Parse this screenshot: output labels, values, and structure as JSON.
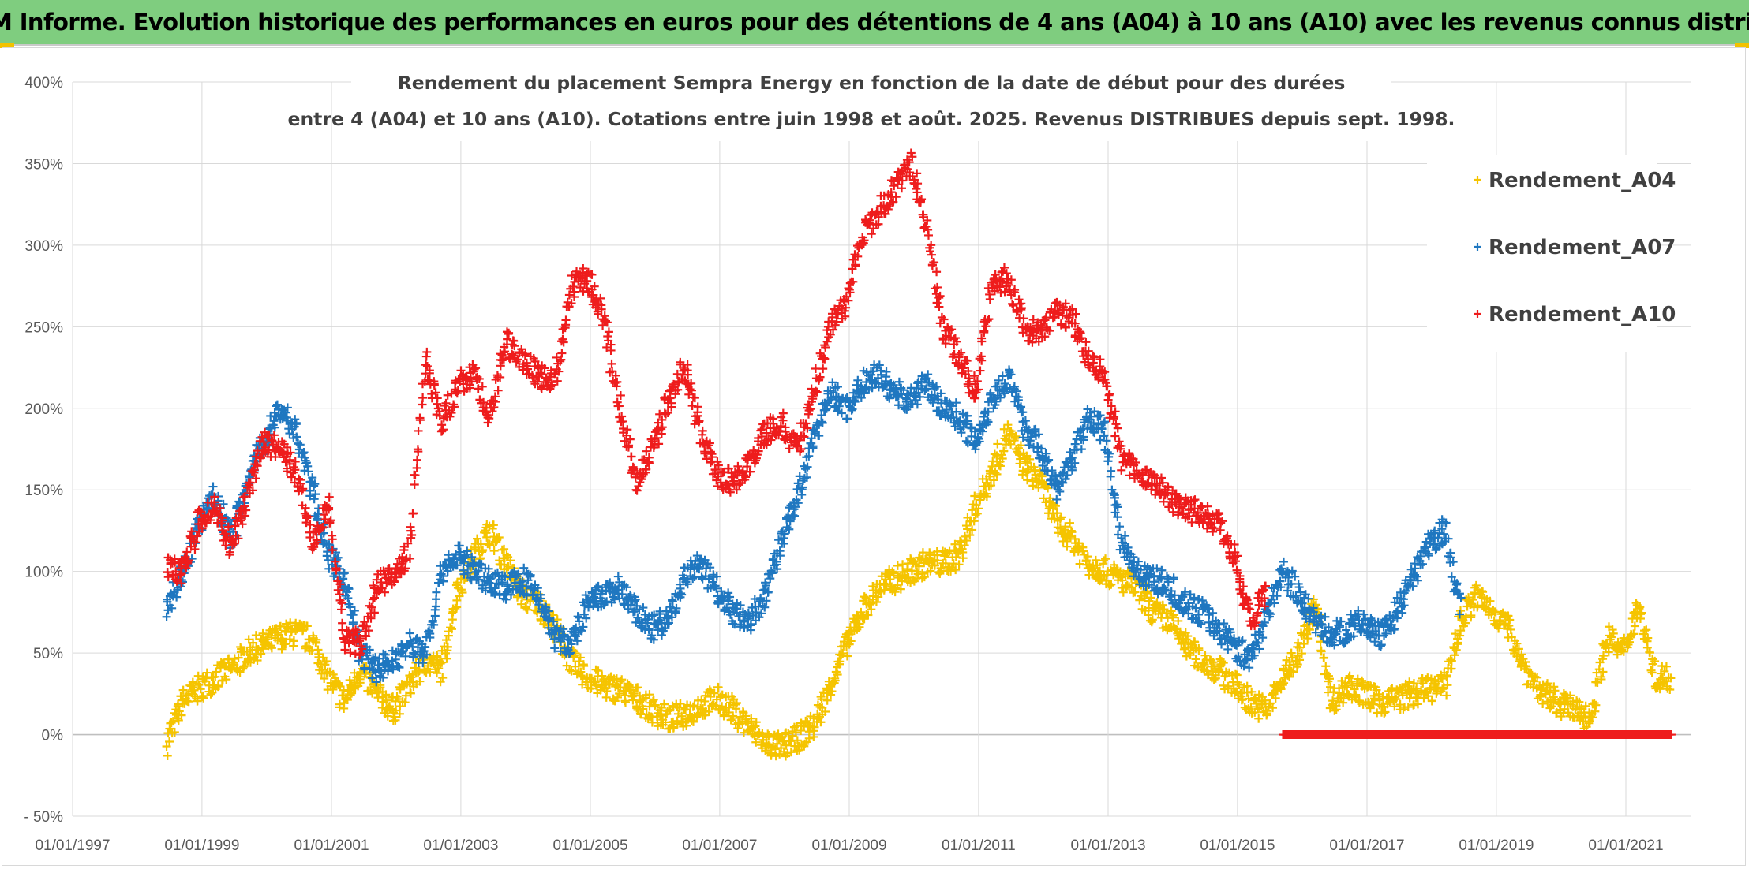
{
  "header": {
    "title": "ADAM Informe. Evolution historique des performances en euros pour des détentions de 4 ans (A04) à 10 ans (A10) avec les revenus connus distribués"
  },
  "colors": {
    "banner": "#7fcd7f",
    "a04": "#f5c400",
    "a07": "#1f77c0",
    "a10": "#ee1c1c",
    "grid": "#d9d9d9"
  },
  "chart_data": {
    "type": "scatter",
    "title_lines": [
      "Rendement du placement Sempra Energy en fonction de la date de début pour des durées",
      "entre 4 (A04) et 10 ans (A10). Cotations entre juin 1998 et août. 2025. Revenus DISTRIBUES depuis sept. 1998."
    ],
    "xlabel": "",
    "ylabel": "",
    "x_ticks": [
      "01/01/1997",
      "01/01/1999",
      "01/01/2001",
      "01/01/2003",
      "01/01/2005",
      "01/01/2007",
      "01/01/2009",
      "01/01/2011",
      "01/01/2013",
      "01/01/2015",
      "01/01/2017",
      "01/01/2019",
      "01/01/2021"
    ],
    "y_ticks": [
      "- 50%",
      "0%",
      "50%",
      "100%",
      "150%",
      "200%",
      "250%",
      "300%",
      "350%",
      "400%"
    ],
    "xlim": [
      "1997-01-01",
      "2021-01-10"
    ],
    "ylim": [
      -0.5,
      4.0
    ],
    "grid": true,
    "legend_position": "top-right",
    "marker": "+",
    "series": [
      {
        "name": "Rendement_A04",
        "color": "#f5c400",
        "x": [
          "1998-06",
          "1998-09",
          "1998-12",
          "1999-03",
          "1999-06",
          "1999-09",
          "1999-12",
          "2000-03",
          "2000-06",
          "2000-09",
          "2000-12",
          "2001-03",
          "2001-06",
          "2001-09",
          "2001-12",
          "2002-03",
          "2002-06",
          "2002-09",
          "2002-12",
          "2003-03",
          "2003-06",
          "2003-09",
          "2003-12",
          "2004-03",
          "2004-06",
          "2004-09",
          "2004-12",
          "2005-03",
          "2005-06",
          "2005-09",
          "2005-12",
          "2006-03",
          "2006-06",
          "2006-09",
          "2006-12",
          "2007-03",
          "2007-06",
          "2007-09",
          "2007-12",
          "2008-03",
          "2008-06",
          "2008-09",
          "2008-12",
          "2009-03",
          "2009-06",
          "2009-09",
          "2009-12",
          "2010-03",
          "2010-06",
          "2010-09",
          "2010-12",
          "2011-03",
          "2011-06",
          "2011-09",
          "2011-12",
          "2012-03",
          "2012-06",
          "2012-09",
          "2012-12",
          "2013-03",
          "2013-06",
          "2013-09",
          "2013-12",
          "2014-03",
          "2014-06",
          "2014-09",
          "2014-12",
          "2015-03",
          "2015-06",
          "2015-09",
          "2015-12",
          "2016-03",
          "2016-06",
          "2016-09",
          "2016-12",
          "2017-03",
          "2017-06",
          "2017-09",
          "2017-12",
          "2018-03",
          "2018-06",
          "2018-09",
          "2018-12",
          "2019-03",
          "2019-06",
          "2019-09",
          "2019-12",
          "2020-03",
          "2020-06",
          "2020-09",
          "2020-12",
          "2021-03",
          "2021-06",
          "2021-09"
        ],
        "values": [
          -0.05,
          0.2,
          0.28,
          0.35,
          0.4,
          0.5,
          0.55,
          0.6,
          0.62,
          0.58,
          0.35,
          0.2,
          0.4,
          0.25,
          0.15,
          0.3,
          0.45,
          0.4,
          0.9,
          1.1,
          1.25,
          1.05,
          0.85,
          0.8,
          0.65,
          0.45,
          0.35,
          0.3,
          0.28,
          0.22,
          0.15,
          0.1,
          0.12,
          0.18,
          0.22,
          0.15,
          0.05,
          -0.05,
          -0.08,
          -0.02,
          0.05,
          0.3,
          0.55,
          0.75,
          0.9,
          0.95,
          1.0,
          1.05,
          1.05,
          1.1,
          1.4,
          1.6,
          1.85,
          1.65,
          1.55,
          1.3,
          1.2,
          1.05,
          1.0,
          0.95,
          0.9,
          0.75,
          0.7,
          0.55,
          0.45,
          0.4,
          0.3,
          0.2,
          0.15,
          0.35,
          0.5,
          0.8,
          0.2,
          0.3,
          0.25,
          0.2,
          0.22,
          0.25,
          0.28,
          0.3,
          0.7,
          0.85,
          0.75,
          0.65,
          0.4,
          0.25,
          0.2,
          0.15,
          0.1,
          0.6,
          0.5,
          0.8,
          0.35,
          0.35
        ]
      },
      {
        "name": "Rendement_A07",
        "color": "#1f77c0",
        "x": [
          "1998-06",
          "1998-09",
          "1998-12",
          "1999-03",
          "1999-06",
          "1999-09",
          "1999-12",
          "2000-03",
          "2000-06",
          "2000-09",
          "2000-12",
          "2001-03",
          "2001-06",
          "2001-09",
          "2001-12",
          "2002-03",
          "2002-06",
          "2002-09",
          "2002-12",
          "2003-03",
          "2003-06",
          "2003-09",
          "2003-12",
          "2004-03",
          "2004-06",
          "2004-09",
          "2004-12",
          "2005-03",
          "2005-06",
          "2005-09",
          "2005-12",
          "2006-03",
          "2006-06",
          "2006-09",
          "2006-12",
          "2007-03",
          "2007-06",
          "2007-09",
          "2007-12",
          "2008-03",
          "2008-06",
          "2008-09",
          "2008-12",
          "2009-03",
          "2009-06",
          "2009-09",
          "2009-12",
          "2010-03",
          "2010-06",
          "2010-09",
          "2010-12",
          "2011-03",
          "2011-06",
          "2011-09",
          "2011-12",
          "2012-03",
          "2012-06",
          "2012-09",
          "2012-12",
          "2013-03",
          "2013-06",
          "2013-09",
          "2013-12",
          "2014-03",
          "2014-06",
          "2014-09",
          "2014-12",
          "2015-03",
          "2015-06",
          "2015-09",
          "2015-12",
          "2016-03",
          "2016-06",
          "2016-09",
          "2016-12",
          "2017-03",
          "2017-06",
          "2017-09",
          "2017-12",
          "2018-03",
          "2018-06"
        ],
        "values": [
          0.8,
          1.0,
          1.3,
          1.45,
          1.2,
          1.55,
          1.8,
          2.0,
          1.85,
          1.5,
          1.1,
          0.95,
          0.5,
          0.4,
          0.45,
          0.55,
          0.5,
          1.0,
          1.1,
          1.0,
          0.95,
          0.9,
          0.95,
          0.85,
          0.6,
          0.55,
          0.8,
          0.85,
          0.9,
          0.75,
          0.65,
          0.7,
          0.95,
          1.05,
          0.9,
          0.75,
          0.7,
          0.85,
          1.2,
          1.45,
          1.8,
          2.1,
          2.0,
          2.15,
          2.2,
          2.1,
          2.05,
          2.15,
          2.0,
          1.95,
          1.8,
          2.05,
          2.2,
          1.9,
          1.75,
          1.5,
          1.7,
          1.95,
          1.85,
          1.2,
          1.0,
          0.95,
          0.9,
          0.8,
          0.75,
          0.65,
          0.55,
          0.45,
          0.75,
          1.0,
          0.85,
          0.7,
          0.6,
          0.65,
          0.7,
          0.6,
          0.75,
          0.95,
          1.15,
          1.25,
          0.75
        ]
      },
      {
        "name": "Rendement_A10",
        "color": "#ee1c1c",
        "x": [
          "1998-06",
          "1998-09",
          "1998-12",
          "1999-03",
          "1999-06",
          "1999-09",
          "1999-12",
          "2000-03",
          "2000-06",
          "2000-09",
          "2000-12",
          "2001-03",
          "2001-06",
          "2001-09",
          "2001-12",
          "2002-03",
          "2002-06",
          "2002-09",
          "2002-12",
          "2003-03",
          "2003-06",
          "2003-09",
          "2003-12",
          "2004-03",
          "2004-06",
          "2004-09",
          "2004-12",
          "2005-03",
          "2005-06",
          "2005-09",
          "2005-12",
          "2006-03",
          "2006-06",
          "2006-09",
          "2006-12",
          "2007-03",
          "2007-06",
          "2007-09",
          "2007-12",
          "2008-03",
          "2008-06",
          "2008-09",
          "2008-12",
          "2009-03",
          "2009-06",
          "2009-09",
          "2009-12",
          "2010-03",
          "2010-06",
          "2010-09",
          "2010-12",
          "2011-03",
          "2011-06",
          "2011-09",
          "2011-12",
          "2012-03",
          "2012-06",
          "2012-09",
          "2012-12",
          "2013-03",
          "2013-06",
          "2013-09",
          "2013-12",
          "2014-03",
          "2014-06",
          "2014-09",
          "2014-12",
          "2015-03",
          "2015-06"
        ],
        "values": [
          1.05,
          1.0,
          1.3,
          1.4,
          1.15,
          1.45,
          1.8,
          1.75,
          1.6,
          1.2,
          1.4,
          0.6,
          0.55,
          0.9,
          1.0,
          1.1,
          2.3,
          1.9,
          2.15,
          2.2,
          1.95,
          2.4,
          2.3,
          2.2,
          2.15,
          2.75,
          2.8,
          2.55,
          2.0,
          1.55,
          1.75,
          2.05,
          2.25,
          1.85,
          1.6,
          1.55,
          1.65,
          1.85,
          1.9,
          1.75,
          2.1,
          2.5,
          2.65,
          3.05,
          3.2,
          3.35,
          3.5,
          3.1,
          2.5,
          2.3,
          2.1,
          2.75,
          2.8,
          2.5,
          2.45,
          2.6,
          2.55,
          2.3,
          2.2,
          1.7,
          1.6,
          1.55,
          1.45,
          1.4,
          1.35,
          1.3,
          1.1,
          0.7,
          0.85
        ]
      },
      {
        "name": "",
        "color": "#ee1c1c",
        "x_range": [
          "2015-09",
          "2021-09"
        ],
        "constant": 0.0
      }
    ]
  }
}
